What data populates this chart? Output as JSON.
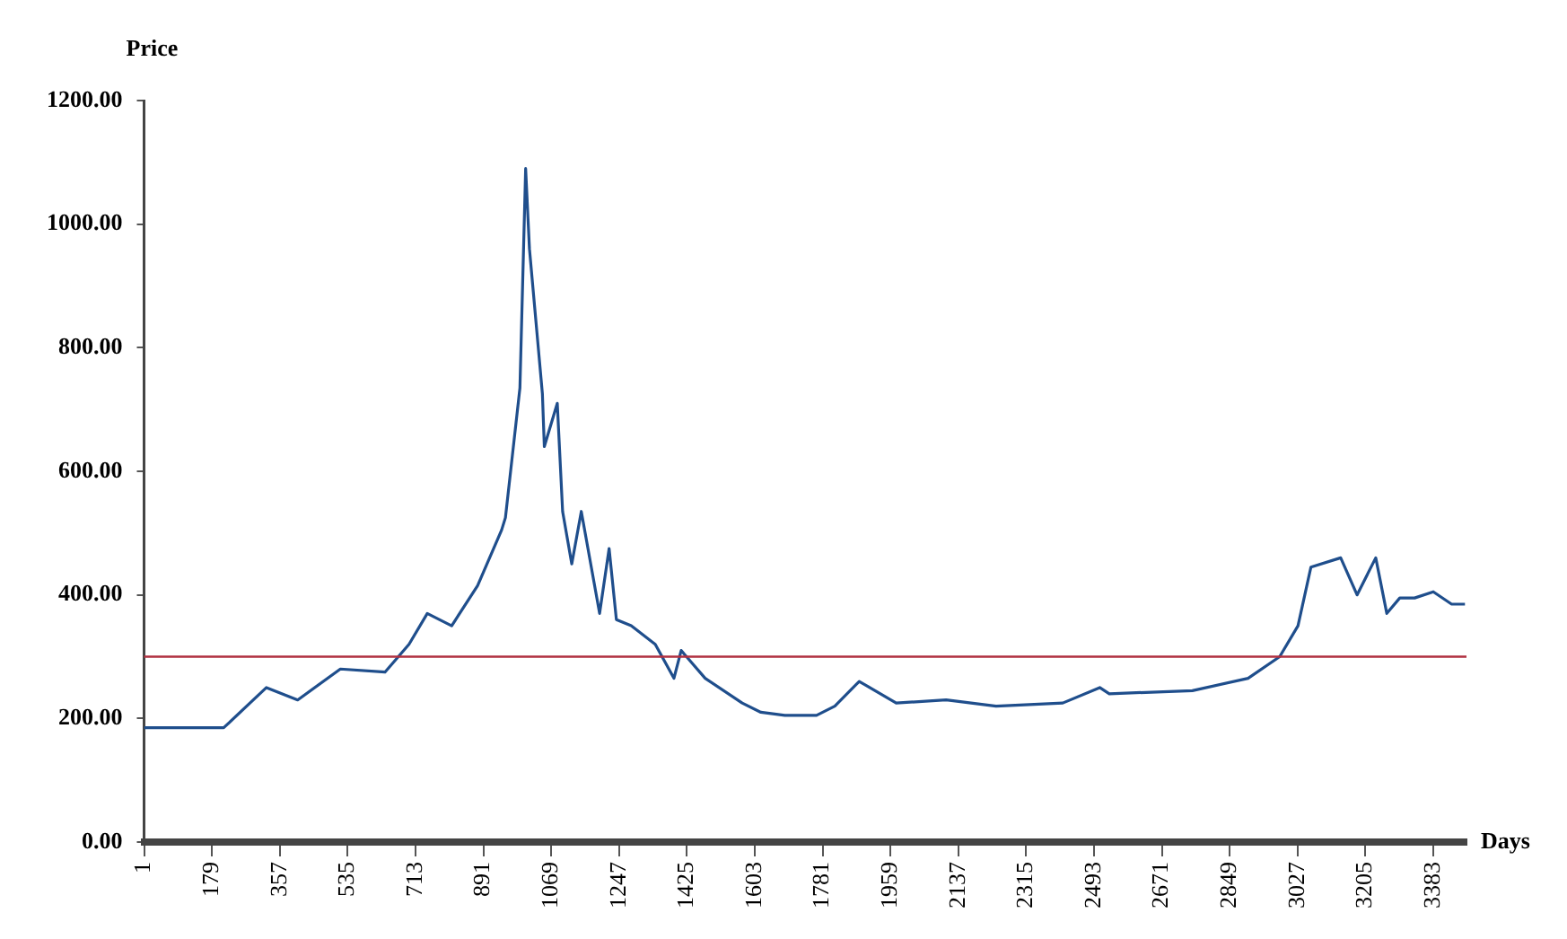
{
  "chart_data": {
    "type": "line",
    "xlabel": "Days",
    "ylabel": "Price",
    "x": [
      1,
      210,
      322,
      404,
      516,
      633,
      696,
      744,
      808,
      876,
      939,
      949,
      987,
      1002,
      1012,
      1046,
      1051,
      1085,
      1099,
      1123,
      1148,
      1196,
      1221,
      1240,
      1279,
      1342,
      1391,
      1410,
      1473,
      1570,
      1619,
      1682,
      1765,
      1813,
      1877,
      1974,
      2105,
      2236,
      2411,
      2508,
      2533,
      2751,
      2897,
      2980,
      3028,
      3062,
      3140,
      3183,
      3232,
      3261,
      3295,
      3334,
      3383,
      3431,
      3466
    ],
    "series": [
      {
        "color": "#1f4e8c",
        "values": [
          185,
          185,
          250,
          230,
          280,
          275,
          320,
          370,
          350,
          415,
          505,
          525,
          735,
          1090,
          960,
          725,
          640,
          710,
          535,
          450,
          535,
          370,
          475,
          360,
          350,
          320,
          265,
          310,
          265,
          225,
          210,
          205,
          205,
          220,
          260,
          225,
          230,
          220,
          225,
          250,
          240,
          245,
          265,
          300,
          350,
          445,
          460,
          400,
          460,
          370,
          395,
          395,
          405,
          385,
          385
        ]
      }
    ],
    "xlim": [
      1,
      3470
    ],
    "xticks": [
      1,
      179,
      357,
      535,
      713,
      891,
      1069,
      1247,
      1425,
      1603,
      1781,
      1959,
      2137,
      2315,
      2493,
      2671,
      2849,
      3027,
      3205,
      3383
    ],
    "ylim": [
      0,
      1200
    ],
    "yticks": [
      {
        "value": 0,
        "label": "0.00"
      },
      {
        "value": 200,
        "label": "200.00"
      },
      {
        "value": 400,
        "label": "400.00"
      },
      {
        "value": 600,
        "label": "600.00"
      },
      {
        "value": 800,
        "label": "800.00"
      },
      {
        "value": 1000,
        "label": "1000.00"
      },
      {
        "value": 1200,
        "label": "1200.00"
      }
    ],
    "ref_lines": [
      {
        "axis": "y",
        "value": 300,
        "color": "#b03040"
      }
    ],
    "grid": false,
    "legend": false,
    "marker": "none",
    "line_style": "solid"
  }
}
